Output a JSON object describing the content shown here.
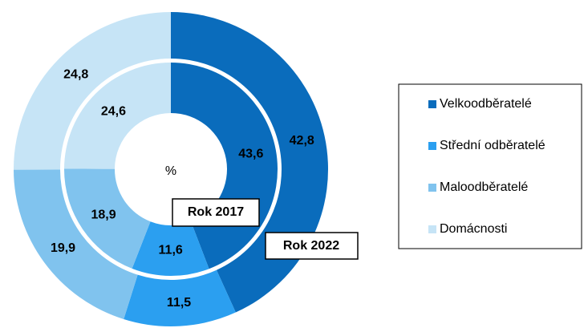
{
  "chart_data": {
    "type": "nested-donut",
    "center_label": "%",
    "categories": [
      "Velkoodběratelé",
      "Střední odběratelé",
      "Maloodběratelé",
      "Domácnosti"
    ],
    "colors": [
      "#0a6cbc",
      "#2b9ff0",
      "#80c3ee",
      "#c6e4f6"
    ],
    "series": [
      {
        "name": "Rok 2017",
        "values": [
          43.6,
          11.6,
          18.9,
          24.6
        ],
        "value_labels": [
          "43,6",
          "11,6",
          "18,9",
          "24,6"
        ]
      },
      {
        "name": "Rok 2022",
        "values": [
          42.8,
          11.5,
          19.9,
          24.8
        ],
        "value_labels": [
          "42,8",
          "11,5",
          "19,9",
          "24,8"
        ]
      }
    ],
    "legend": "right"
  }
}
